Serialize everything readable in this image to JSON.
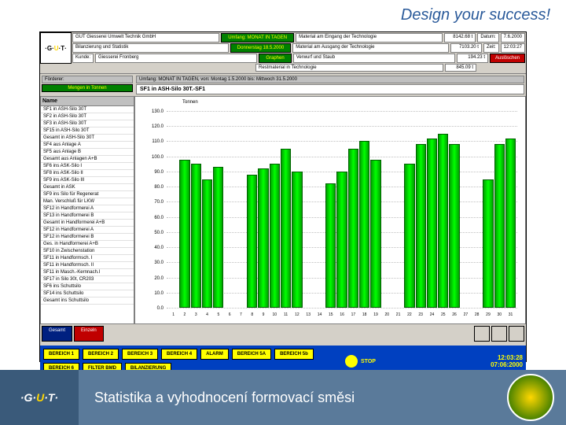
{
  "slogan": "Design your success!",
  "header": {
    "company": "GUT Giesserei Umwelt Technik GmbH",
    "row2_label": "Bilanzierung und Statistik",
    "row3_label": "Kunde:",
    "row3_val": "Giesserei Fronberg",
    "green1": "Umfang: MONAT IN TAGEN",
    "green2": "Donnerstag 18.5.2000",
    "green3": "Graphen",
    "info1": "Material am Eingang der Technologie",
    "info2": "Material am Ausgang der Technologie",
    "info3": "Verwurf und Staub",
    "info4": "Restmaterial in Technologie",
    "val1": "8142.68 t",
    "val2": "7103.20 t",
    "val3": "194.23 t",
    "val4": "845.09 t",
    "date_label": "Datum:",
    "date_val": "7.6.2000",
    "time_label": "Zeit:",
    "time_val": "12:03:27",
    "btn_clear": "Auslöschen"
  },
  "subheader": {
    "l1": "Förderer:",
    "btn1": "Mengen in Tonnen",
    "range": "Umfang: MONAT IN TAGEN,   von: Montag 1.5.2000   bis: Mittwoch 31.5.2000",
    "chart_title": "SF1 in ASH-Silo 30T.-SF1"
  },
  "sidebar": {
    "header": "Name",
    "items": [
      "SF1 in ASH-Silo 30T",
      "SF2 in ASH-Silo 30T",
      "SF3 in ASH-Silo 30T",
      "SF15 in ASH-Silo 30T",
      "Gesamt in ASH-Silo 30T",
      "SF4 aus Anlage A",
      "SF5 aus Anlage B",
      "Gesamt aus Anlagen A+B",
      "SF6 ins ASK-Silo I",
      "SF8 ins ASK-Silo II",
      "SF9 ins ASK-Silo III",
      "Gesamt in ASK",
      "SF9 ins Silo für Regenerat",
      "Man. Verschluß für LKW",
      "SF12 in Handformerei A",
      "SF13 in Handformerei B",
      "Gesamt in Handformerei A+B",
      "SF12 in Handformerei A",
      "SF12 in Handformerei B",
      "Ges. in Handformerei A+B",
      "SF10 in Zwischenstation",
      "SF11 in Handformsch. I",
      "SF11 in Handformsch. II",
      "SF11 in Masch.-Kernnach.I",
      "SF17 in Silo 30t, CR203",
      "SF6 ins Schuttsilo",
      "SF14 ins Schuttsilo",
      "Gesamt ins Schuttsilo"
    ]
  },
  "chart": {
    "ylabel": "Tonnen",
    "ymax": 130,
    "ytick": 10,
    "values": [
      0,
      98,
      95,
      85,
      93,
      0,
      0,
      88,
      92,
      95,
      105,
      90,
      0,
      0,
      82,
      90,
      105,
      110,
      98,
      0,
      0,
      95,
      108,
      112,
      115,
      108,
      0,
      0,
      85,
      108,
      112
    ],
    "bar_color_start": "#00a000",
    "bar_color_mid": "#00ff00",
    "grid_color": "#c0c0c0"
  },
  "footer": {
    "tab1": "Gesamt",
    "tab2": "Einzeln",
    "buttons": [
      "BEREICH 1",
      "BEREICH 2",
      "BEREICH 3",
      "BEREICH 4",
      "ALARM",
      "BEREICH 5A",
      "BEREICH 5b",
      "BEREICH 6",
      "FILTER BMD",
      "BILANZIERUNG"
    ],
    "stop": "STOP",
    "time": "12:03:28",
    "date": "07:06:2000"
  },
  "bottom": {
    "title": "Statistika a vyhodnocení formovací směsi"
  }
}
